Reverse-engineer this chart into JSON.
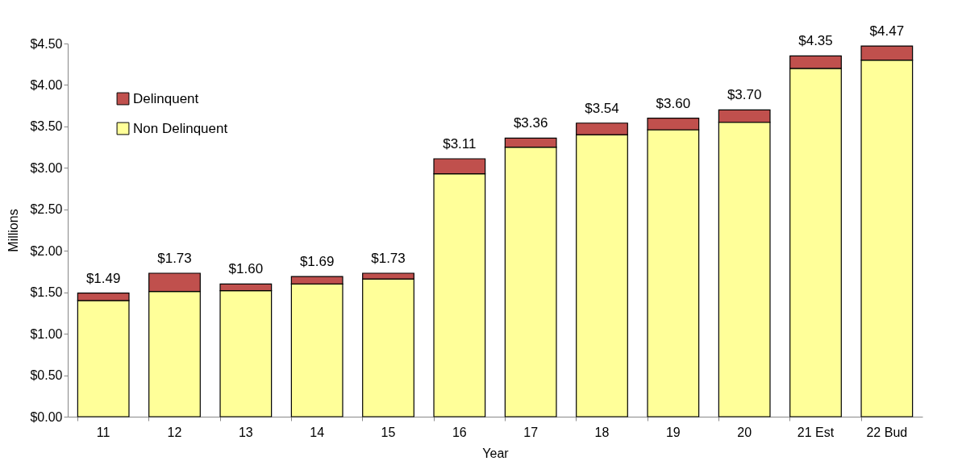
{
  "chart_data": {
    "type": "bar",
    "stacked": true,
    "xlabel": "Year",
    "ylabel": "Millions",
    "categories": [
      "11",
      "12",
      "13",
      "14",
      "15",
      "16",
      "17",
      "18",
      "19",
      "20",
      "21 Est",
      "22 Bud"
    ],
    "series": [
      {
        "name": "Non Delinquent",
        "color": "#ffff99",
        "values": [
          1.4,
          1.51,
          1.52,
          1.6,
          1.66,
          2.93,
          3.25,
          3.4,
          3.46,
          3.55,
          4.2,
          4.3
        ]
      },
      {
        "name": "Delinquent",
        "color": "#c0504d",
        "values": [
          0.09,
          0.22,
          0.08,
          0.09,
          0.07,
          0.18,
          0.11,
          0.14,
          0.14,
          0.15,
          0.15,
          0.17
        ]
      }
    ],
    "totals": [
      "$1.49",
      "$1.73",
      "$1.60",
      "$1.69",
      "$1.73",
      "$3.11",
      "$3.36",
      "$3.54",
      "$3.60",
      "$3.70",
      "$4.35",
      "$4.47"
    ],
    "ylim": [
      0,
      4.5
    ],
    "yticks": [
      {
        "value": 0,
        "label": "$0.00"
      },
      {
        "value": 0.5,
        "label": "$0.50"
      },
      {
        "value": 1,
        "label": "$1.00"
      },
      {
        "value": 1.5,
        "label": "$1.50"
      },
      {
        "value": 2,
        "label": "$2.00"
      },
      {
        "value": 2.5,
        "label": "$2.50"
      },
      {
        "value": 3,
        "label": "$3.00"
      },
      {
        "value": 3.5,
        "label": "$3.50"
      },
      {
        "value": 4,
        "label": "$4.00"
      },
      {
        "value": 4.5,
        "label": "$4.50"
      }
    ],
    "grid": false,
    "legend": "top left"
  }
}
